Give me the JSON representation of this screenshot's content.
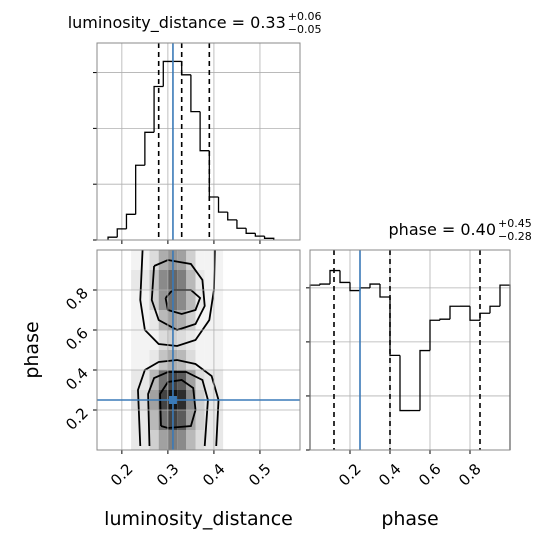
{
  "chart_data": [
    {
      "type": "histogram",
      "title": "luminosity_distance = 0.33",
      "title_upper": "+0.06",
      "title_lower": "−0.05",
      "bins": [
        0.17,
        0.19,
        0.21,
        0.23,
        0.25,
        0.27,
        0.29,
        0.31,
        0.33,
        0.35,
        0.37,
        0.39,
        0.41,
        0.43,
        0.45,
        0.47,
        0.49,
        0.51,
        0.53
      ],
      "values": [
        0.05,
        0.2,
        0.46,
        1.34,
        1.93,
        2.75,
        3.2,
        3.2,
        2.96,
        2.3,
        1.6,
        0.77,
        0.5,
        0.36,
        0.21,
        0.12,
        0.07,
        0.03
      ],
      "color": "#000000",
      "xlim": [
        0.146,
        0.587
      ],
      "xticks": [
        0.2,
        0.3,
        0.4,
        0.5
      ],
      "ylim": [
        0,
        3.53
      ],
      "yticks": [
        0,
        1,
        2,
        3
      ],
      "quantiles": [
        0.28,
        0.33,
        0.39
      ],
      "truth": 0.311,
      "truth_color": "#3a7ab8",
      "grid": true
    },
    {
      "type": "hist2d",
      "xlabel": "luminosity_distance",
      "ylabel": "phase",
      "xlim": [
        0.146,
        0.587
      ],
      "ylim": [
        0,
        1
      ],
      "xticks": [
        0.2,
        0.3,
        0.4,
        0.5
      ],
      "yticks": [
        0.2,
        0.4,
        0.6,
        0.8
      ],
      "xbins": [
        0.22,
        0.26,
        0.28,
        0.3,
        0.32,
        0.34,
        0.36,
        0.38,
        0.42
      ],
      "ybins": [
        0.0,
        0.1,
        0.2,
        0.3,
        0.4,
        0.5,
        0.6,
        0.7,
        0.8,
        0.9,
        1.0
      ],
      "values": [
        [
          0.1,
          0.2,
          0.4,
          0.55,
          0.5,
          0.3,
          0.15,
          0.1
        ],
        [
          0.1,
          0.3,
          0.6,
          0.8,
          0.7,
          0.4,
          0.2,
          0.1
        ],
        [
          0.15,
          0.4,
          0.8,
          1.0,
          0.9,
          0.5,
          0.2,
          0.1
        ],
        [
          0.1,
          0.3,
          0.6,
          0.8,
          0.7,
          0.4,
          0.15,
          0.1
        ],
        [
          0.05,
          0.1,
          0.25,
          0.35,
          0.3,
          0.15,
          0.05,
          0.05
        ],
        [
          0.05,
          0.05,
          0.15,
          0.2,
          0.15,
          0.1,
          0.05,
          0.05
        ],
        [
          0.05,
          0.1,
          0.3,
          0.4,
          0.35,
          0.2,
          0.05,
          0.05
        ],
        [
          0.05,
          0.2,
          0.45,
          0.6,
          0.5,
          0.3,
          0.1,
          0.05
        ],
        [
          0.1,
          0.25,
          0.5,
          0.65,
          0.55,
          0.3,
          0.1,
          0.05
        ],
        [
          0.05,
          0.15,
          0.35,
          0.45,
          0.4,
          0.2,
          0.05,
          0.05
        ]
      ],
      "contours": [
        {
          "x": [
            0.24,
            0.235,
            0.25,
            0.28,
            0.32,
            0.36,
            0.395,
            0.41,
            0.405
          ],
          "y": [
            0.02,
            0.3,
            0.4,
            0.44,
            0.45,
            0.43,
            0.37,
            0.25,
            0.02
          ]
        },
        {
          "x": [
            0.26,
            0.257,
            0.27,
            0.3,
            0.34,
            0.375,
            0.387,
            0.38
          ],
          "y": [
            0.02,
            0.28,
            0.36,
            0.39,
            0.39,
            0.35,
            0.25,
            0.02
          ]
        },
        {
          "x": [
            0.285,
            0.283,
            0.3,
            0.33,
            0.355,
            0.36,
            0.35,
            0.3,
            0.285
          ],
          "y": [
            0.12,
            0.28,
            0.34,
            0.35,
            0.31,
            0.2,
            0.12,
            0.11,
            0.12
          ]
        },
        {
          "x": [
            0.245,
            0.24,
            0.25,
            0.28,
            0.32,
            0.36,
            0.39,
            0.4,
            0.402
          ],
          "y": [
            1.0,
            0.75,
            0.6,
            0.53,
            0.52,
            0.55,
            0.65,
            0.8,
            1.0
          ]
        },
        {
          "x": [
            0.27,
            0.265,
            0.28,
            0.32,
            0.36,
            0.38,
            0.375,
            0.35,
            0.3,
            0.27
          ],
          "y": [
            0.92,
            0.75,
            0.65,
            0.6,
            0.63,
            0.72,
            0.85,
            0.93,
            0.95,
            0.92
          ]
        },
        {
          "x": [
            0.295,
            0.3,
            0.33,
            0.36,
            0.37,
            0.35,
            0.31,
            0.295
          ],
          "y": [
            0.76,
            0.7,
            0.68,
            0.7,
            0.76,
            0.8,
            0.8,
            0.76
          ]
        }
      ],
      "truth": [
        0.311,
        0.25
      ],
      "truth_color": "#3a7ab8",
      "grid": true
    },
    {
      "type": "histogram",
      "title": "phase = 0.40",
      "title_upper": "+0.45",
      "title_lower": "−0.28",
      "xlabel": "phase",
      "bins": [
        0,
        0.05,
        0.1,
        0.15,
        0.2,
        0.25,
        0.3,
        0.35,
        0.4,
        0.45,
        0.5,
        0.55,
        0.6,
        0.65,
        0.7,
        0.75,
        0.8,
        0.85,
        0.9,
        0.95,
        1.0
      ],
      "values": [
        3.05,
        3.07,
        3.32,
        3.1,
        2.95,
        3.0,
        3.07,
        2.83,
        1.75,
        0.73,
        0.73,
        1.84,
        2.4,
        2.42,
        2.66,
        2.66,
        2.4,
        2.53,
        2.66,
        3.05
      ],
      "color": "#000000",
      "xlim": [
        0,
        1
      ],
      "xticks": [
        0.2,
        0.4,
        0.6,
        0.8
      ],
      "ylim": [
        0,
        3.7
      ],
      "yticks": [
        0,
        1,
        2,
        3
      ],
      "quantiles": [
        0.12,
        0.4,
        0.85
      ],
      "truth": 0.25,
      "truth_color": "#3a7ab8",
      "grid": true
    }
  ]
}
